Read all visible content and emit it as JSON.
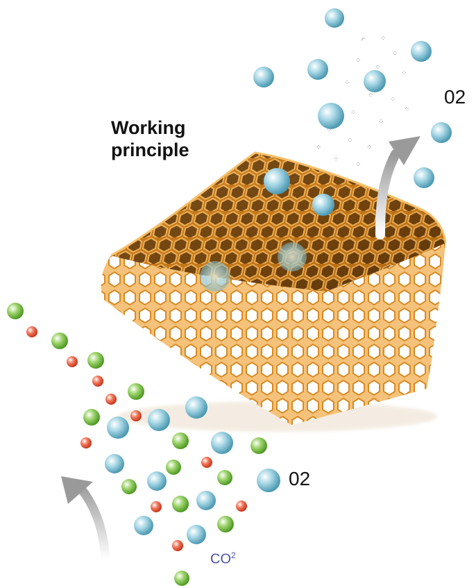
{
  "title_line1": "Working",
  "title_line2": "principle",
  "label_o2_top": "02",
  "label_o2_bottom": "02",
  "label_co2": "CO",
  "label_co2_sup": "2",
  "colors": {
    "o2_molecule": "#8cc6d6",
    "green_molecule": "#7cc24a",
    "co2_molecule": "#ee5a3c",
    "honeycomb": "#d98a22",
    "arrow": "#c8c8c8",
    "co2_text": "#4a52a8"
  },
  "icons": [
    "o2-molecule-icon",
    "green-molecule-icon",
    "co2-molecule-icon",
    "honeycomb-filter-icon",
    "flow-arrow-icon"
  ]
}
